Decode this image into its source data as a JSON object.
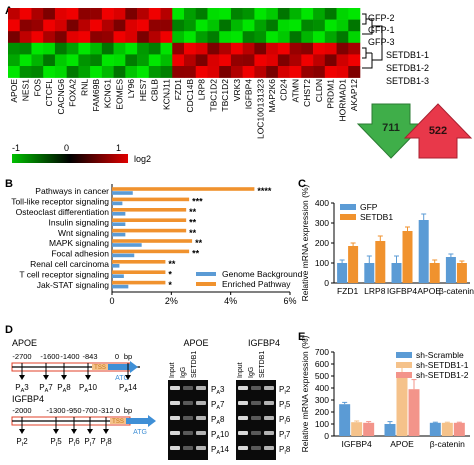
{
  "panel_labels": {
    "a": "A",
    "b": "B",
    "c": "C",
    "d": "D",
    "e": "E"
  },
  "panelA": {
    "row_labels": [
      "GFP-2",
      "GFP-1",
      "GFP-3",
      "SETDB1-1",
      "SETDB1-2",
      "SETDB1-3"
    ],
    "genes": [
      "APOE",
      "NES1",
      "FOS",
      "CTCFL",
      "CACNG6",
      "FOXA2",
      "RNL",
      "FAM69B",
      "KCNG1",
      "EOMES",
      "LY96",
      "HES7",
      "CBLB",
      "KCNJ11",
      "FZD1",
      "CDC14B",
      "LRP8",
      "TBC1D2",
      "TBC1D2",
      "VRK3",
      "IGFBP4",
      "LOC100131323",
      "MAP2K6",
      "CD24",
      "ATMN",
      "CHST2",
      "CLDN",
      "PRDM1",
      "HORMAD1",
      "AKAP12"
    ],
    "down_count": "711",
    "up_count": "522",
    "colorbar_ticks": [
      "-1",
      "0",
      "1"
    ],
    "colorbar_unit": "log2",
    "colors": {
      "low": "#00c000",
      "mid": "#000000",
      "high": "#e00000",
      "down_arrow": "#3fae49",
      "up_arrow": "#e8384a"
    }
  },
  "chart_data": [
    {
      "panel": "B",
      "type": "bar",
      "orientation": "horizontal",
      "categories": [
        "Pathways in cancer",
        "Toll-like receptor signaling",
        "Osteoclast differentiation",
        "Insulin signaling",
        "Wnt signaling",
        "MAPK signaling",
        "Focal adhesion",
        "Renal cell carcinoma",
        "T cell receptor signaling",
        "Jak-STAT signaling"
      ],
      "series": [
        {
          "name": "Genome Background",
          "values": [
            0.7,
            0.35,
            0.45,
            0.45,
            0.45,
            1.0,
            0.75,
            0.25,
            0.4,
            0.55
          ]
        },
        {
          "name": "Enriched Pathway",
          "values": [
            4.8,
            2.6,
            2.5,
            2.5,
            2.5,
            2.7,
            2.6,
            1.8,
            1.8,
            1.8
          ]
        }
      ],
      "significance": [
        "****",
        "***",
        "**",
        "**",
        "**",
        "**",
        "**",
        "**",
        "*",
        "*"
      ],
      "xlim": [
        0,
        6
      ],
      "xticks": [
        "0",
        "2%",
        "4%",
        "6%"
      ],
      "legend": "bottom-right",
      "colors": {
        "Genome Background": "#5b9bd5",
        "Enriched Pathway": "#f0922e"
      }
    },
    {
      "panel": "C",
      "type": "bar",
      "categories": [
        "FZD1",
        "LRP8",
        "IGFBP4",
        "APOE",
        "β-catenin"
      ],
      "series": [
        {
          "name": "GFP",
          "values": [
            100,
            100,
            100,
            315,
            130
          ]
        },
        {
          "name": "SETDB1",
          "values": [
            185,
            210,
            260,
            100,
            100
          ]
        }
      ],
      "errors": [
        [
          15,
          35,
          35,
          30,
          15
        ],
        [
          15,
          25,
          20,
          15,
          10
        ]
      ],
      "ylabel": "Relative mRNA expression (%)",
      "ylim": [
        0,
        400
      ],
      "yticks": [
        "0",
        "100",
        "200",
        "300",
        "400"
      ],
      "legend": "top-left",
      "colors": {
        "GFP": "#5b9bd5",
        "SETDB1": "#f0922e"
      }
    },
    {
      "panel": "E",
      "type": "bar",
      "categories": [
        "IGFBP4",
        "APOE",
        "β-catenin"
      ],
      "series": [
        {
          "name": "sh-Scramble",
          "values": [
            265,
            100,
            110
          ]
        },
        {
          "name": "sh-SETDB1-1",
          "values": [
            115,
            520,
            110
          ]
        },
        {
          "name": "sh-SETDB1-2",
          "values": [
            110,
            390,
            110
          ]
        }
      ],
      "errors": [
        [
          15,
          20,
          5
        ],
        [
          10,
          70,
          5
        ],
        [
          10,
          80,
          5
        ]
      ],
      "ylabel": "Relative mRNA expression (%)",
      "ylim": [
        0,
        700
      ],
      "yticks": [
        "0",
        "100",
        "200",
        "300",
        "400",
        "500",
        "600",
        "700"
      ],
      "legend": "top-right",
      "colors": {
        "sh-Scramble": "#5b9bd5",
        "sh-SETDB1-1": "#f5c28a",
        "sh-SETDB1-2": "#f3948a"
      }
    }
  ],
  "panelD": {
    "apoe": {
      "title": "APOE",
      "ticks": [
        "-2700",
        "-1600",
        "-1400",
        "-843",
        "0",
        "bp"
      ],
      "primers": [
        "3",
        "7",
        "8",
        "10",
        "14"
      ],
      "primer_prefix": "P",
      "primer_sub": "A",
      "tss": "TSS",
      "atg": "ATG"
    },
    "igfbp4": {
      "title": "IGFBP4",
      "ticks": [
        "-2000",
        "-1300",
        "-950",
        "-700",
        "-312",
        "0",
        "bp"
      ],
      "primers": [
        "2",
        "5",
        "6",
        "7",
        "8"
      ],
      "primer_prefix": "P",
      "primer_sub": "I",
      "tss": "TSS",
      "atg": "ATG"
    },
    "gel_apoe": {
      "title": "APOE",
      "lanes": [
        "Input",
        "IgG",
        "SETDB1"
      ],
      "rows": [
        "3",
        "7",
        "8",
        "10",
        "14"
      ],
      "sub": "A"
    },
    "gel_igfbp4": {
      "title": "IGFBP4",
      "lanes": [
        "Input",
        "IgG",
        "SETDB1"
      ],
      "rows": [
        "2",
        "5",
        "6",
        "7",
        "8"
      ],
      "sub": "I"
    }
  }
}
